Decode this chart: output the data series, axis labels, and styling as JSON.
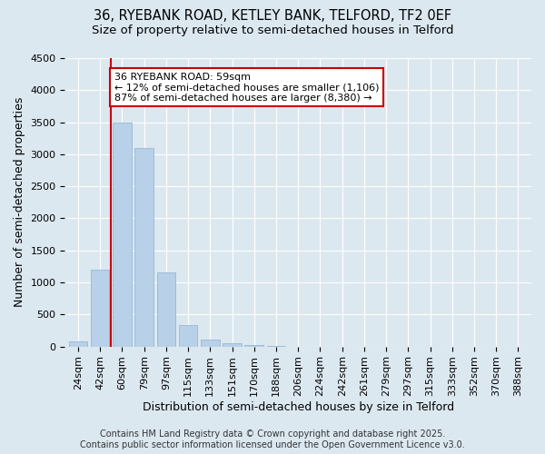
{
  "title_line1": "36, RYEBANK ROAD, KETLEY BANK, TELFORD, TF2 0EF",
  "title_line2": "Size of property relative to semi-detached houses in Telford",
  "xlabel": "Distribution of semi-detached houses by size in Telford",
  "ylabel": "Number of semi-detached properties",
  "categories": [
    "24sqm",
    "42sqm",
    "60sqm",
    "79sqm",
    "97sqm",
    "115sqm",
    "133sqm",
    "151sqm",
    "170sqm",
    "188sqm",
    "206sqm",
    "224sqm",
    "242sqm",
    "261sqm",
    "279sqm",
    "297sqm",
    "315sqm",
    "333sqm",
    "352sqm",
    "370sqm",
    "388sqm"
  ],
  "values": [
    75,
    1200,
    3500,
    3100,
    1150,
    330,
    110,
    50,
    20,
    5,
    0,
    0,
    0,
    0,
    0,
    0,
    0,
    0,
    0,
    0,
    0
  ],
  "bar_color": "#b8d0e8",
  "bar_edgecolor": "#8ab0d0",
  "vline_color": "#cc0000",
  "vline_position": 1.5,
  "annotation_title": "36 RYEBANK ROAD: 59sqm",
  "annotation_line1": "← 12% of semi-detached houses are smaller (1,106)",
  "annotation_line2": "87% of semi-detached houses are larger (8,380) →",
  "annotation_box_facecolor": "#ffffff",
  "annotation_box_edgecolor": "#cc0000",
  "ylim": [
    0,
    4500
  ],
  "yticks": [
    0,
    500,
    1000,
    1500,
    2000,
    2500,
    3000,
    3500,
    4000,
    4500
  ],
  "footer_line1": "Contains HM Land Registry data © Crown copyright and database right 2025.",
  "footer_line2": "Contains public sector information licensed under the Open Government Licence v3.0.",
  "bg_color": "#dce8f0",
  "plot_bg_color": "#dce8f0",
  "grid_color": "#ffffff",
  "title_fontsize": 10.5,
  "subtitle_fontsize": 9.5,
  "axis_label_fontsize": 9,
  "tick_fontsize": 8,
  "annotation_fontsize": 8,
  "footer_fontsize": 7
}
